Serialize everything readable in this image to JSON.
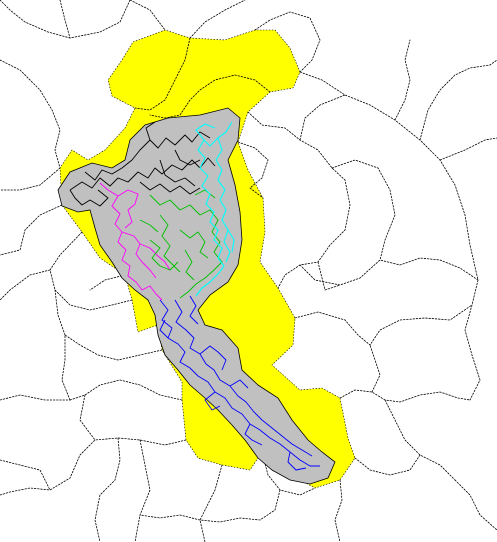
{
  "map": {
    "colors": {
      "background": "#ffffff",
      "region_fill": "#ffff00",
      "buffer_fill": "#c0c0c0",
      "buffer_stroke": "#000000",
      "boundary": "#000000",
      "route_black": "#000000",
      "route_magenta": "#ff00ff",
      "route_green": "#00c000",
      "route_cyan": "#00ffff",
      "route_blue": "#0000ff"
    },
    "layers": [
      "administrative-boundaries",
      "highlighted-region",
      "corridor-buffer",
      "route-black",
      "route-magenta",
      "route-green",
      "route-cyan",
      "route-blue"
    ]
  }
}
